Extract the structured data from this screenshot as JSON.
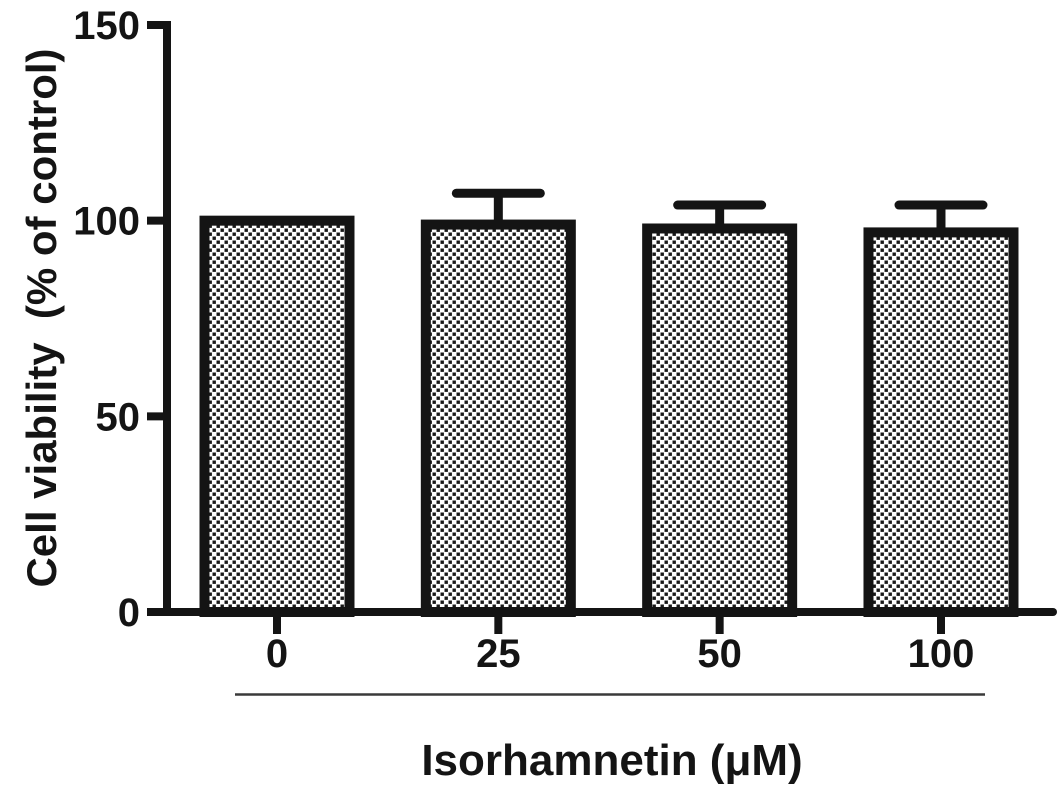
{
  "figure": {
    "background": "#ffffff",
    "ink_color": "#141414",
    "underline_color": "#3a3a3a",
    "bar_pattern_dot_color": "#181818",
    "bar_pattern_bg_color": "#ffffff"
  },
  "chart_data": {
    "type": "bar",
    "categories": [
      "0",
      "25",
      "50",
      "100"
    ],
    "values": [
      100,
      99,
      98,
      97
    ],
    "errors_upper": [
      0,
      8,
      6,
      7
    ],
    "error_bar_style": "upper-cap-only",
    "bar_fill_pattern": "black-white-checkerboard",
    "xlabel": "Isorhamnetin (μM)",
    "ylabel": "Cell viability  (% of control)",
    "yticks": [
      0,
      50,
      100,
      150
    ],
    "ylim": [
      0,
      150
    ],
    "grid": false,
    "legend": null,
    "x_axis_group_underline": true
  }
}
